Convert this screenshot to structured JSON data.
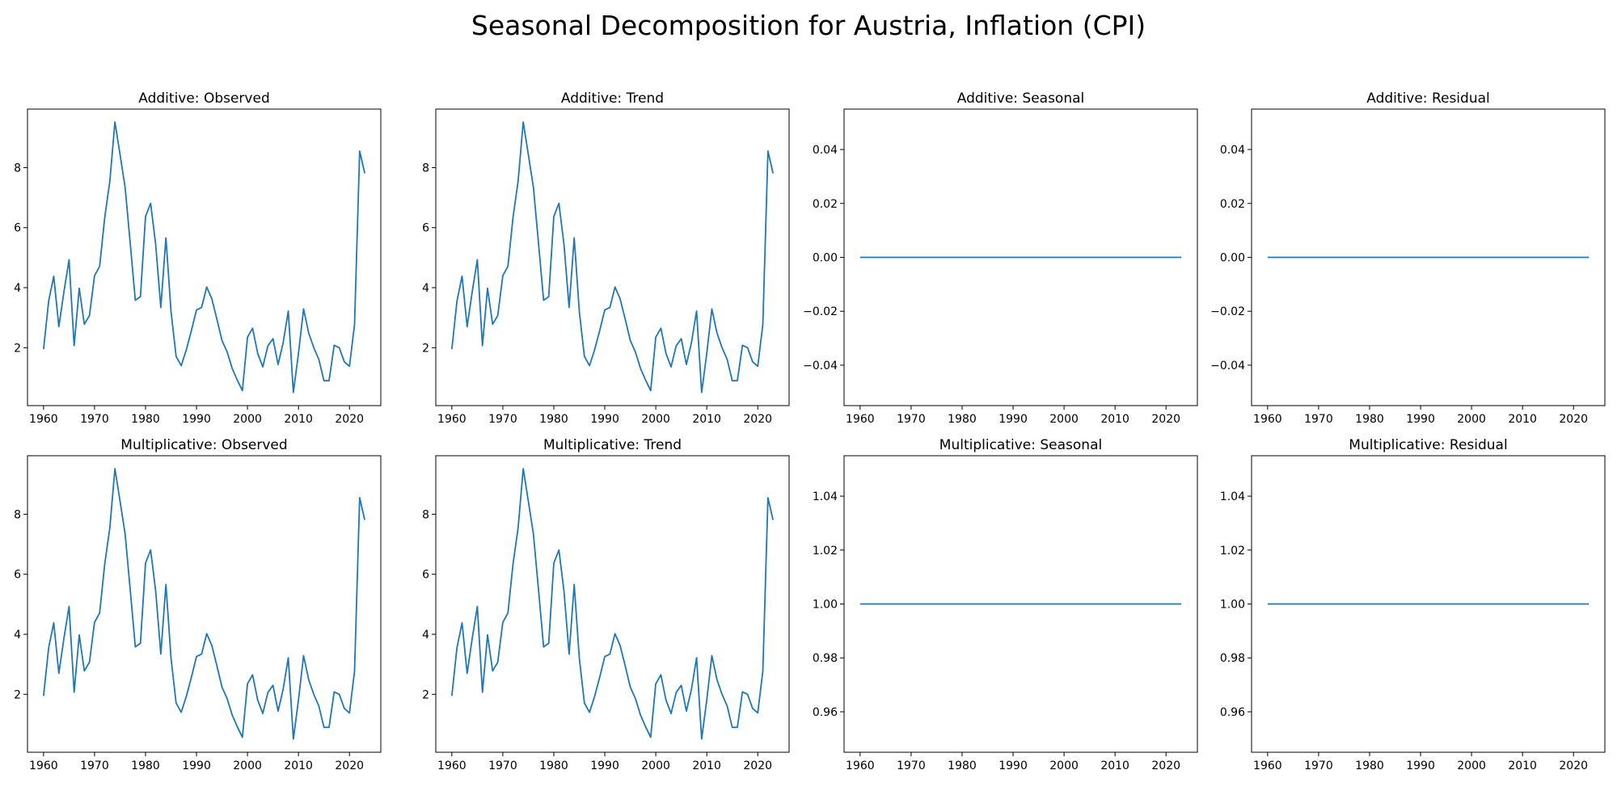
{
  "title": "Seasonal Decomposition for Austria, Inflation (CPI)",
  "colors": {
    "line": "#1f77b4",
    "axes": "#000000",
    "background": "#ffffff"
  },
  "chart_data": [
    {
      "type": "line",
      "title": "Additive: Observed",
      "xlabel": "",
      "ylabel": "",
      "xlim": [
        1956.85,
        2026.15
      ],
      "ylim": [
        0.07,
        9.95
      ],
      "xticks": [
        1960,
        1970,
        1980,
        1990,
        2000,
        2010,
        2020
      ],
      "yticks": [
        2,
        4,
        6,
        8
      ],
      "series_ref": "inflation"
    },
    {
      "type": "line",
      "title": "Additive: Trend",
      "xlabel": "",
      "ylabel": "",
      "xlim": [
        1956.85,
        2026.15
      ],
      "ylim": [
        0.07,
        9.95
      ],
      "xticks": [
        1960,
        1970,
        1980,
        1990,
        2000,
        2010,
        2020
      ],
      "yticks": [
        2,
        4,
        6,
        8
      ],
      "series_ref": "inflation"
    },
    {
      "type": "line",
      "title": "Additive: Seasonal",
      "xlabel": "",
      "ylabel": "",
      "xlim": [
        1956.85,
        2026.15
      ],
      "ylim": [
        -0.055,
        0.055
      ],
      "xticks": [
        1960,
        1970,
        1980,
        1990,
        2000,
        2010,
        2020
      ],
      "yticks": [
        -0.04,
        -0.02,
        0.0,
        0.02,
        0.04
      ],
      "ytick_labels": [
        "−0.04",
        "−0.02",
        "0.00",
        "0.02",
        "0.04"
      ],
      "constant": 0.0
    },
    {
      "type": "line",
      "title": "Additive: Residual",
      "xlabel": "",
      "ylabel": "",
      "xlim": [
        1956.85,
        2026.15
      ],
      "ylim": [
        -0.055,
        0.055
      ],
      "xticks": [
        1960,
        1970,
        1980,
        1990,
        2000,
        2010,
        2020
      ],
      "yticks": [
        -0.04,
        -0.02,
        0.0,
        0.02,
        0.04
      ],
      "ytick_labels": [
        "−0.04",
        "−0.02",
        "0.00",
        "0.02",
        "0.04"
      ],
      "constant": 0.0
    },
    {
      "type": "line",
      "title": "Multiplicative: Observed",
      "xlabel": "",
      "ylabel": "",
      "xlim": [
        1956.85,
        2026.15
      ],
      "ylim": [
        0.07,
        9.95
      ],
      "xticks": [
        1960,
        1970,
        1980,
        1990,
        2000,
        2010,
        2020
      ],
      "yticks": [
        2,
        4,
        6,
        8
      ],
      "series_ref": "inflation"
    },
    {
      "type": "line",
      "title": "Multiplicative: Trend",
      "xlabel": "",
      "ylabel": "",
      "xlim": [
        1956.85,
        2026.15
      ],
      "ylim": [
        0.07,
        9.95
      ],
      "xticks": [
        1960,
        1970,
        1980,
        1990,
        2000,
        2010,
        2020
      ],
      "yticks": [
        2,
        4,
        6,
        8
      ],
      "series_ref": "inflation"
    },
    {
      "type": "line",
      "title": "Multiplicative: Seasonal",
      "xlabel": "",
      "ylabel": "",
      "xlim": [
        1956.85,
        2026.15
      ],
      "ylim": [
        0.945,
        1.055
      ],
      "xticks": [
        1960,
        1970,
        1980,
        1990,
        2000,
        2010,
        2020
      ],
      "yticks": [
        0.96,
        0.98,
        1.0,
        1.02,
        1.04
      ],
      "ytick_labels": [
        "0.96",
        "0.98",
        "1.00",
        "1.02",
        "1.04"
      ],
      "constant": 1.0
    },
    {
      "type": "line",
      "title": "Multiplicative: Residual",
      "xlabel": "",
      "ylabel": "",
      "xlim": [
        1956.85,
        2026.15
      ],
      "ylim": [
        0.945,
        1.055
      ],
      "xticks": [
        1960,
        1970,
        1980,
        1990,
        2000,
        2010,
        2020
      ],
      "yticks": [
        0.96,
        0.98,
        1.0,
        1.02,
        1.04
      ],
      "ytick_labels": [
        "0.96",
        "0.98",
        "1.00",
        "1.02",
        "1.04"
      ],
      "constant": 1.0
    }
  ],
  "series_data": {
    "inflation": {
      "x": [
        1960,
        1961,
        1962,
        1963,
        1964,
        1965,
        1966,
        1967,
        1968,
        1969,
        1970,
        1971,
        1972,
        1973,
        1974,
        1975,
        1976,
        1977,
        1978,
        1979,
        1980,
        1981,
        1982,
        1983,
        1984,
        1985,
        1986,
        1987,
        1988,
        1989,
        1990,
        1991,
        1992,
        1993,
        1994,
        1995,
        1996,
        1997,
        1998,
        1999,
        2000,
        2001,
        2002,
        2003,
        2004,
        2005,
        2006,
        2007,
        2008,
        2009,
        2010,
        2011,
        2012,
        2013,
        2014,
        2015,
        2016,
        2017,
        2018,
        2019,
        2020,
        2021,
        2022,
        2023
      ],
      "y": [
        1.95,
        3.55,
        4.38,
        2.7,
        3.87,
        4.93,
        2.07,
        3.98,
        2.78,
        3.07,
        4.4,
        4.71,
        6.34,
        7.55,
        9.52,
        8.44,
        7.34,
        5.48,
        3.58,
        3.7,
        6.37,
        6.81,
        5.43,
        3.34,
        5.66,
        3.21,
        1.71,
        1.4,
        1.93,
        2.57,
        3.26,
        3.34,
        4.02,
        3.63,
        2.95,
        2.24,
        1.86,
        1.31,
        0.92,
        0.57,
        2.35,
        2.65,
        1.81,
        1.36,
        2.06,
        2.3,
        1.44,
        2.17,
        3.22,
        0.51,
        1.81,
        3.29,
        2.49,
        2.0,
        1.61,
        0.9,
        0.9,
        2.08,
        2.0,
        1.53,
        1.38,
        2.77,
        8.55,
        7.81
      ]
    }
  }
}
